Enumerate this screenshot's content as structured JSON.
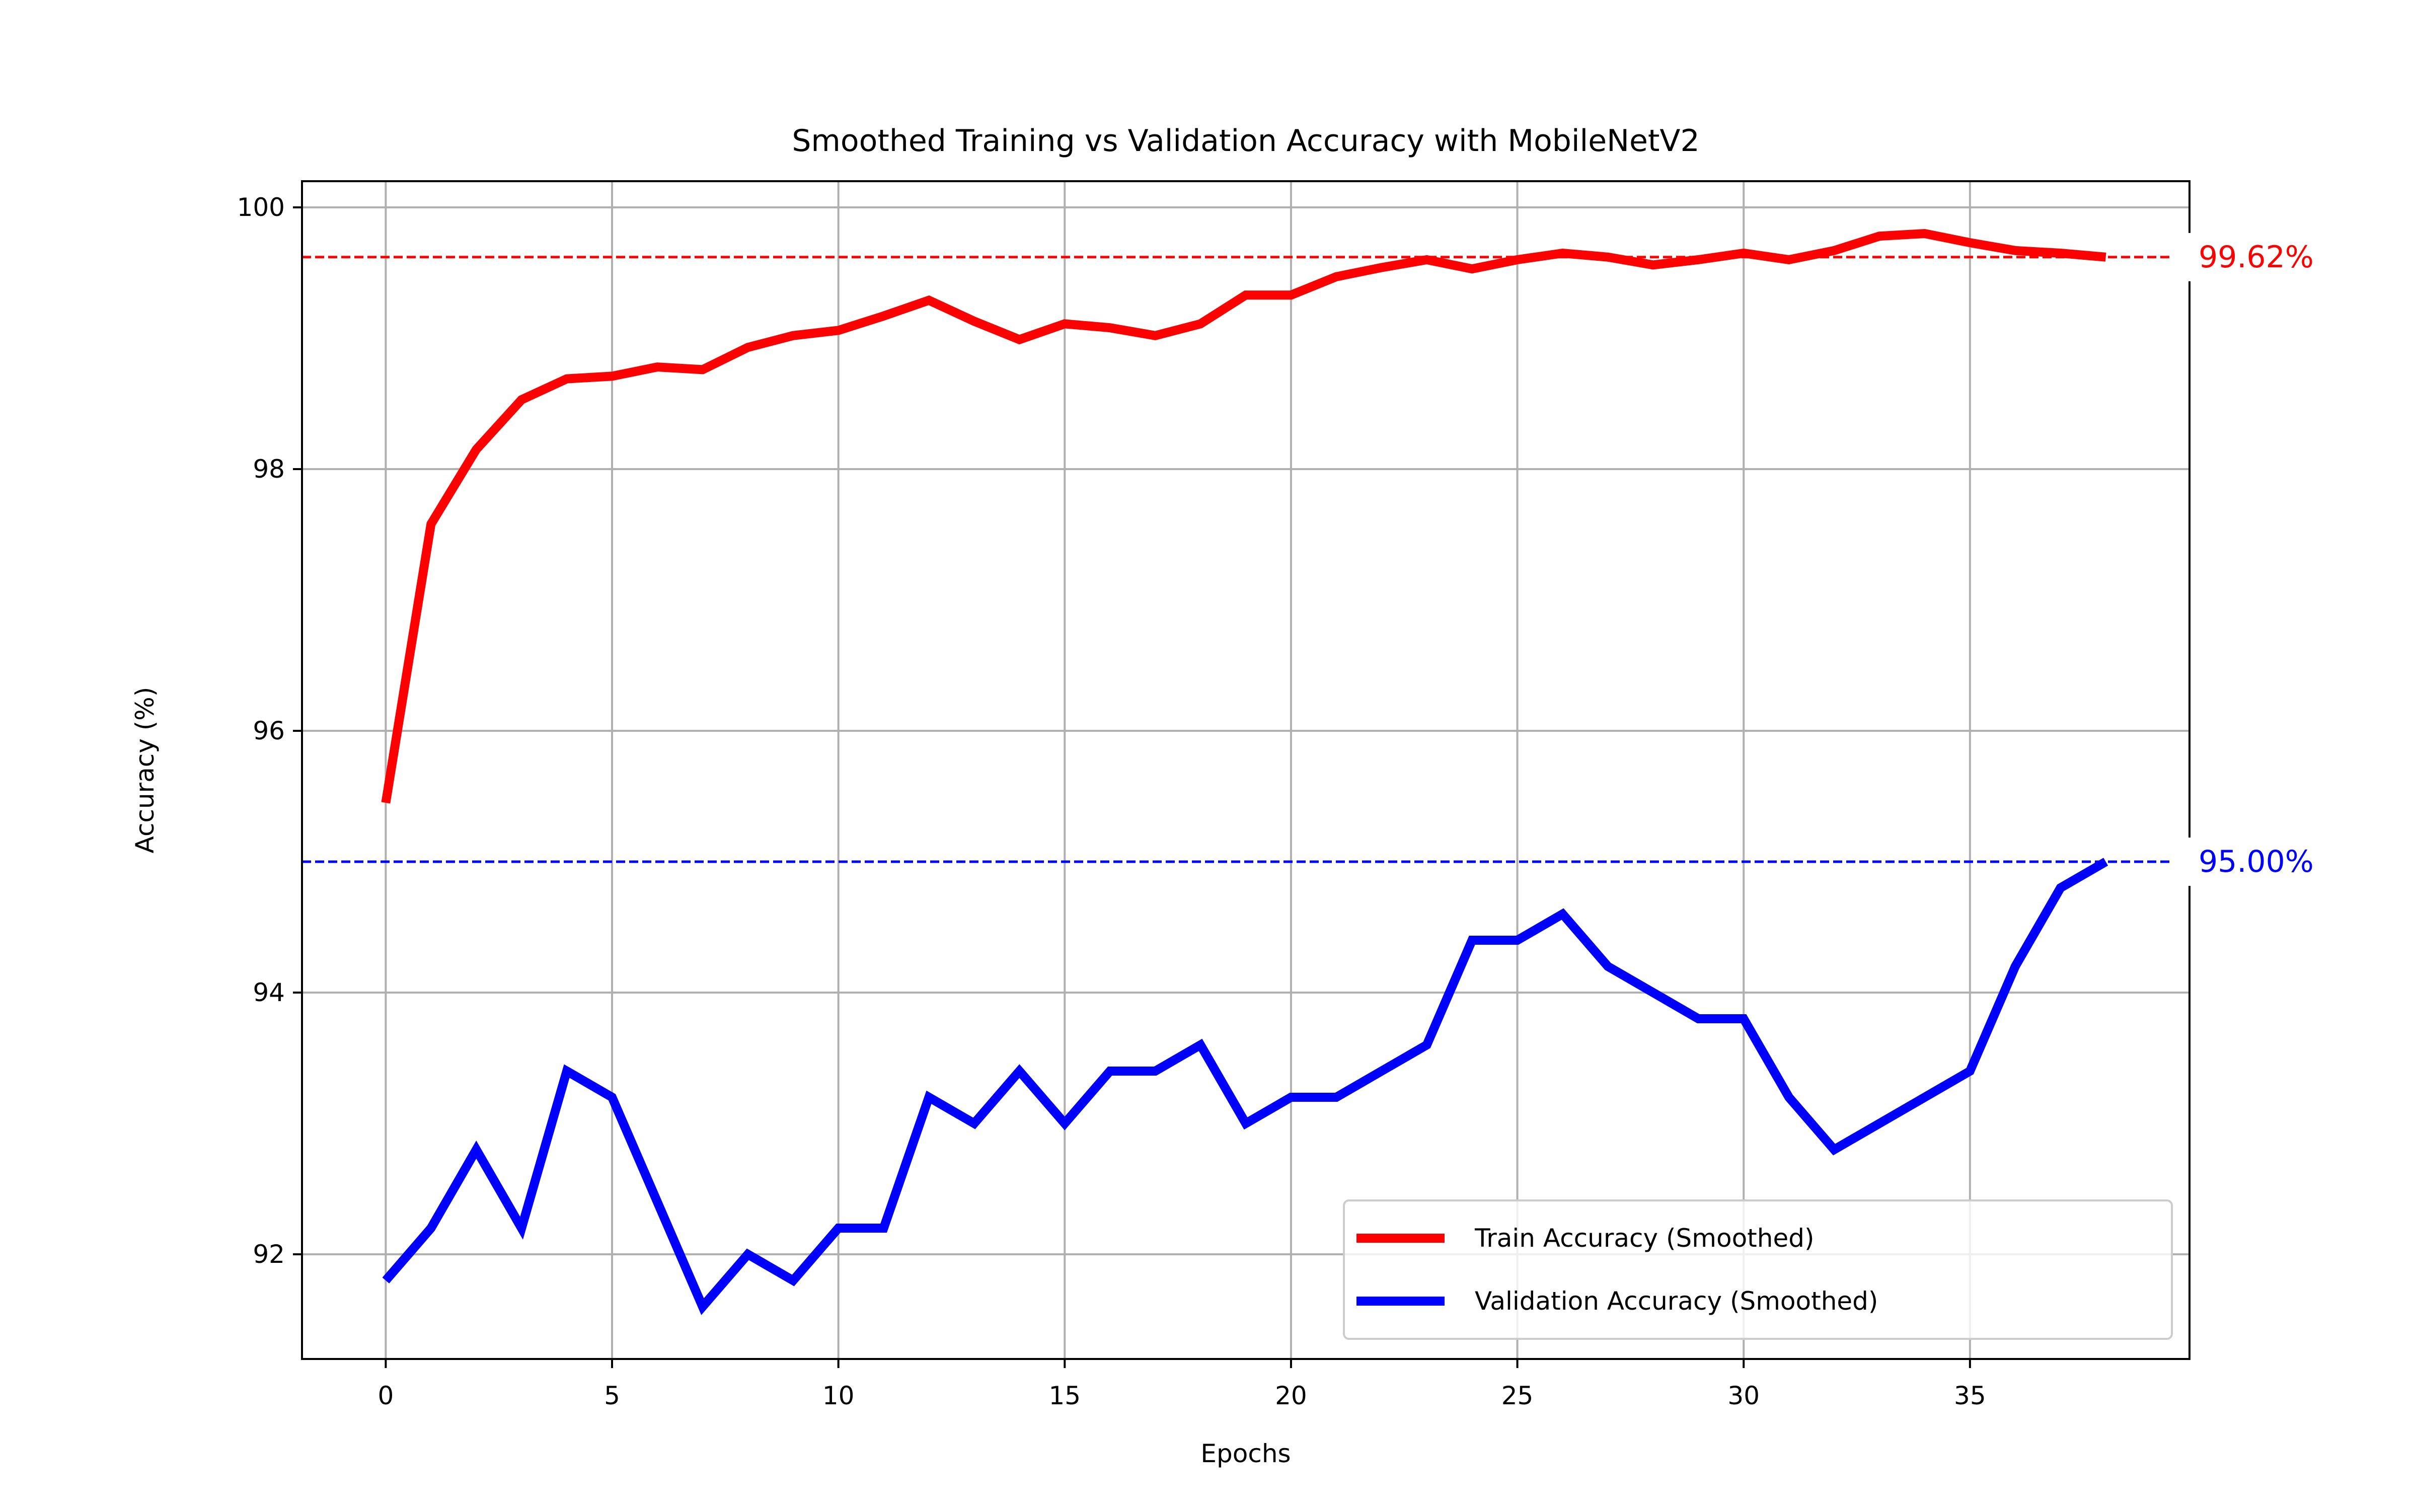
{
  "chart_data": {
    "type": "line",
    "title": "Smoothed Training vs Validation Accuracy with MobileNetV2",
    "xlabel": "Epochs",
    "ylabel": "Accuracy (%)",
    "xlim": [
      -1.85,
      39.85
    ],
    "ylim": [
      91.2,
      100.2
    ],
    "xticks": [
      0,
      5,
      10,
      15,
      20,
      25,
      30,
      35
    ],
    "yticks": [
      92,
      94,
      96,
      98,
      100
    ],
    "grid": true,
    "legend_position": "lower right",
    "x": [
      0,
      1,
      2,
      3,
      4,
      5,
      6,
      7,
      8,
      9,
      10,
      11,
      12,
      13,
      14,
      15,
      16,
      17,
      18,
      19,
      20,
      21,
      22,
      23,
      24,
      25,
      26,
      27,
      28,
      29,
      30,
      31,
      32,
      33,
      34,
      35,
      36,
      37,
      38
    ],
    "series": [
      {
        "name": "Train Accuracy (Smoothed)",
        "color": "#ff0000",
        "values": [
          95.45,
          97.58,
          98.15,
          98.53,
          98.69,
          98.71,
          98.78,
          98.76,
          98.93,
          99.02,
          99.06,
          99.17,
          99.29,
          99.13,
          98.99,
          99.11,
          99.08,
          99.02,
          99.11,
          99.33,
          99.33,
          99.47,
          99.54,
          99.6,
          99.53,
          99.6,
          99.65,
          99.62,
          99.56,
          99.6,
          99.65,
          99.6,
          99.67,
          99.78,
          99.8,
          99.73,
          99.67,
          99.65,
          99.62
        ]
      },
      {
        "name": "Validation Accuracy (Smoothed)",
        "color": "#0000ff",
        "values": [
          91.8,
          92.2,
          92.8,
          92.2,
          93.4,
          93.2,
          92.4,
          91.6,
          92.0,
          91.8,
          92.2,
          92.2,
          93.2,
          93.0,
          93.4,
          93.0,
          93.4,
          93.4,
          93.6,
          93.0,
          93.2,
          93.2,
          93.4,
          93.6,
          94.4,
          94.4,
          94.6,
          94.2,
          94.0,
          93.8,
          93.8,
          93.2,
          92.8,
          93.0,
          93.2,
          93.4,
          94.2,
          94.8,
          95.0
        ]
      }
    ],
    "reference_lines": [
      {
        "y": 99.62,
        "label": "99.62%",
        "color": "#ff0000"
      },
      {
        "y": 95.0,
        "label": "95.00%",
        "color": "#0000ff"
      }
    ]
  }
}
